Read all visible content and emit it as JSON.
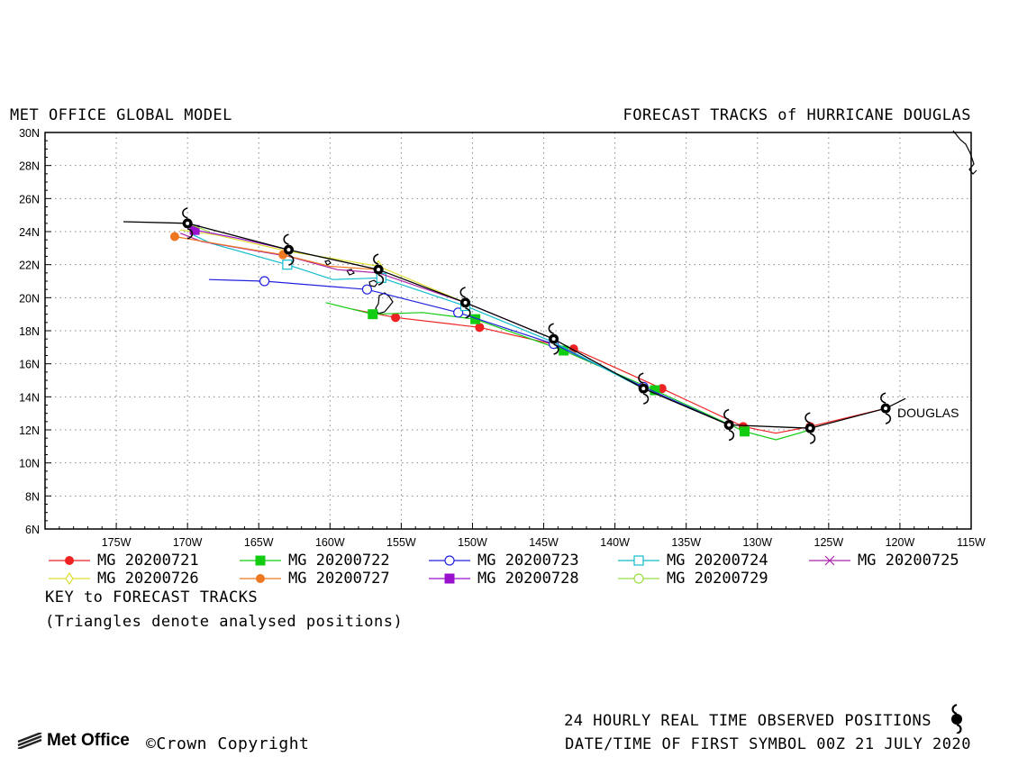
{
  "header": {
    "left_title": "MET OFFICE GLOBAL MODEL",
    "right_title": "FORECAST TRACKS of HURRICANE DOUGLAS"
  },
  "storm_label": "DOUGLAS",
  "legend": {
    "key_title": "KEY to FORECAST TRACKS",
    "note": "(Triangles denote analysed positions)"
  },
  "footer": {
    "observed_positions": "24 HOURLY REAL TIME OBSERVED POSITIONS",
    "first_symbol": "DATE/TIME OF FIRST SYMBOL 00Z 21 JULY 2020",
    "copyright": "©Crown Copyright",
    "logo_text": "Met Office"
  },
  "chart_data": {
    "type": "line",
    "title": "FORECAST TRACKS of HURRICANE DOUGLAS",
    "xlabel": "",
    "ylabel": "",
    "xlim": [
      -180,
      -115
    ],
    "ylim": [
      6,
      30
    ],
    "x_ticks": [
      -175,
      -170,
      -165,
      -160,
      -155,
      -150,
      -145,
      -140,
      -135,
      -130,
      -125,
      -120,
      -115
    ],
    "x_tick_labels": [
      "175W",
      "170W",
      "165W",
      "160W",
      "155W",
      "150W",
      "145W",
      "140W",
      "135W",
      "130W",
      "125W",
      "120W",
      "115W"
    ],
    "y_ticks": [
      6,
      8,
      10,
      12,
      14,
      16,
      18,
      20,
      22,
      24,
      26,
      28,
      30
    ],
    "y_tick_labels": [
      "6N",
      "8N",
      "10N",
      "12N",
      "14N",
      "16N",
      "18N",
      "20N",
      "22N",
      "24N",
      "26N",
      "28N",
      "30N"
    ],
    "grid": true,
    "legend_position": "below",
    "observed_track": {
      "lon": [
        -119.6,
        -121,
        -126.3,
        -132,
        -138,
        -144.3,
        -150.5,
        -156.6,
        -162.9,
        -170,
        -174.5
      ],
      "lat": [
        13.9,
        13.3,
        12.1,
        12.3,
        14.5,
        17.5,
        19.7,
        21.7,
        22.9,
        24.5,
        24.6
      ],
      "symbols_lon": [
        -121,
        -126.3,
        -132,
        -138,
        -144.3,
        -150.5,
        -156.6,
        -162.9,
        -170
      ],
      "symbols_lat": [
        13.3,
        12.1,
        12.3,
        14.5,
        17.5,
        19.7,
        21.7,
        22.9,
        24.5
      ]
    },
    "series": [
      {
        "name": "MG 20200721",
        "color": "#ee2222",
        "marker": "circle-filled",
        "lon": [
          -121,
          -126.3,
          -128.7,
          -131,
          -136.7,
          -142.9,
          -149.5,
          -155.4,
          -158.4
        ],
        "lat": [
          13.3,
          12.2,
          11.8,
          12.2,
          14.5,
          16.9,
          18.2,
          18.8,
          19.3
        ],
        "markers_lon": [
          -121,
          -126.3,
          -131,
          -136.7,
          -142.9,
          -149.5,
          -155.4
        ],
        "markers_lat": [
          13.3,
          12.2,
          12.2,
          14.5,
          16.9,
          18.2,
          18.8
        ]
      },
      {
        "name": "MG 20200722",
        "color": "#11cc11",
        "marker": "square-filled",
        "lon": [
          -126.3,
          -128.7,
          -130.9,
          -137.2,
          -143.6,
          -149.8,
          -153.5,
          -157,
          -160.3
        ],
        "lat": [
          12.0,
          11.4,
          11.9,
          14.4,
          16.8,
          18.7,
          19.1,
          19.0,
          19.7
        ],
        "markers_lon": [
          -130.9,
          -137.2,
          -143.6,
          -149.8,
          -157
        ],
        "markers_lat": [
          11.9,
          14.4,
          16.8,
          18.7,
          19.0
        ]
      },
      {
        "name": "MG 20200723",
        "color": "#2222dd",
        "marker": "circle-open",
        "lon": [
          -132,
          -138,
          -144.3,
          -151,
          -157.4,
          -164.6,
          -168.5
        ],
        "lat": [
          12.3,
          14.6,
          17.2,
          19.1,
          20.5,
          21.0,
          21.1
        ],
        "markers_lon": [
          -138,
          -144.3,
          -151,
          -157.4,
          -164.6
        ],
        "markers_lat": [
          14.6,
          17.2,
          19.1,
          20.5,
          21.0
        ]
      },
      {
        "name": "MG 20200724",
        "color": "#11bbcc",
        "marker": "square-open",
        "lon": [
          -138,
          -144.3,
          -150.5,
          -156.4,
          -159.8,
          -163,
          -168.4,
          -169.6
        ],
        "lat": [
          14.5,
          17.3,
          19.5,
          21.2,
          21.1,
          22.0,
          23.3,
          23.8
        ],
        "markers_lon": [
          -150.5,
          -156.4,
          -163
        ],
        "markers_lat": [
          19.5,
          21.2,
          22.0
        ]
      },
      {
        "name": "MG 20200725",
        "color": "#aa22aa",
        "marker": "cross",
        "lon": [
          -144.3,
          -150.5,
          -156.6,
          -159.5,
          -162.9,
          -169,
          -170.5
        ],
        "lat": [
          17.5,
          19.7,
          21.5,
          21.7,
          22.5,
          23.4,
          23.9
        ],
        "markers_lon": [],
        "markers_lat": []
      },
      {
        "name": "MG 20200726",
        "color": "#dddd33",
        "marker": "diamond-open",
        "lon": [
          -150.5,
          -156.6,
          -160,
          -162.9,
          -168,
          -170.5
        ],
        "lat": [
          19.7,
          21.9,
          22.4,
          22.8,
          23.8,
          24.1
        ],
        "markers_lon": [
          -156.6
        ],
        "markers_lat": [
          21.9
        ]
      },
      {
        "name": "MG 20200727",
        "color": "#ee7722",
        "marker": "circle-filled",
        "lon": [
          -156.6,
          -160,
          -163.3,
          -167.5,
          -170.9
        ],
        "lat": [
          21.7,
          21.9,
          22.6,
          23.2,
          23.7
        ],
        "markers_lon": [
          -163.3,
          -170.9
        ],
        "markers_lat": [
          22.6,
          23.7
        ]
      },
      {
        "name": "MG 20200728",
        "color": "#9911cc",
        "marker": "square-filled",
        "lon": [
          -162.9,
          -166.5,
          -169.5
        ],
        "lat": [
          22.9,
          23.6,
          24.1
        ],
        "markers_lon": [
          -169.5
        ],
        "markers_lat": [
          24.1
        ]
      },
      {
        "name": "MG 20200729",
        "color": "#99dd44",
        "marker": "circle-open",
        "lon": [
          -168.5,
          -170
        ],
        "lat": [
          24.0,
          24.5
        ],
        "markers_lon": [],
        "markers_lat": []
      }
    ]
  }
}
